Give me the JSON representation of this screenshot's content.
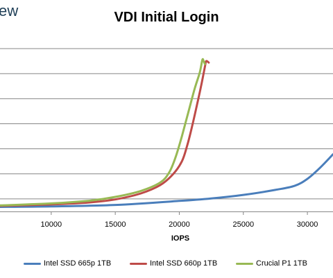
{
  "logo": {
    "text": "ew"
  },
  "chart_data": {
    "type": "line",
    "title": "VDI Initial Login",
    "xlabel": "IOPS",
    "ylabel": "",
    "xlim": [
      6000,
      32000
    ],
    "ylim": [
      0,
      7
    ],
    "xticks": [
      10000,
      15000,
      20000,
      25000,
      30000
    ],
    "xtick_labels": [
      "10000",
      "15000",
      "20000",
      "25000",
      "30000"
    ],
    "y_gridlines": [
      0,
      0.5,
      1.5,
      2.5,
      3.5,
      4.5,
      5.5,
      6.5
    ],
    "grid": true,
    "legend_position": "bottom",
    "series": [
      {
        "name": "Intel SSD 665p 1TB",
        "color": "#4a7ebb",
        "points": [
          [
            6000,
            0.18
          ],
          [
            10000,
            0.2
          ],
          [
            15000,
            0.26
          ],
          [
            20000,
            0.42
          ],
          [
            22500,
            0.52
          ],
          [
            25000,
            0.66
          ],
          [
            27500,
            0.86
          ],
          [
            29000,
            1.02
          ],
          [
            30000,
            1.3
          ],
          [
            31000,
            1.75
          ],
          [
            32000,
            2.28
          ]
        ]
      },
      {
        "name": "Intel SSD 660p 1TB",
        "color": "#be4b48",
        "points": [
          [
            6000,
            0.22
          ],
          [
            10000,
            0.28
          ],
          [
            13000,
            0.36
          ],
          [
            15000,
            0.48
          ],
          [
            17000,
            0.72
          ],
          [
            18500,
            1.05
          ],
          [
            19500,
            1.48
          ],
          [
            20200,
            2.0
          ],
          [
            20600,
            2.6
          ],
          [
            21000,
            3.4
          ],
          [
            21400,
            4.3
          ],
          [
            21700,
            5.0
          ],
          [
            22000,
            5.78
          ],
          [
            22100,
            6.0
          ],
          [
            22300,
            5.94
          ]
        ]
      },
      {
        "name": "Crucial P1 1TB",
        "color": "#98b954",
        "points": [
          [
            6000,
            0.24
          ],
          [
            10000,
            0.32
          ],
          [
            13000,
            0.43
          ],
          [
            15000,
            0.58
          ],
          [
            17000,
            0.82
          ],
          [
            18500,
            1.15
          ],
          [
            19200,
            1.55
          ],
          [
            19700,
            2.15
          ],
          [
            20200,
            3.0
          ],
          [
            20700,
            3.95
          ],
          [
            21200,
            4.9
          ],
          [
            21600,
            5.55
          ],
          [
            21800,
            6.05
          ],
          [
            21900,
            6.0
          ],
          [
            22000,
            5.88
          ]
        ]
      }
    ]
  }
}
